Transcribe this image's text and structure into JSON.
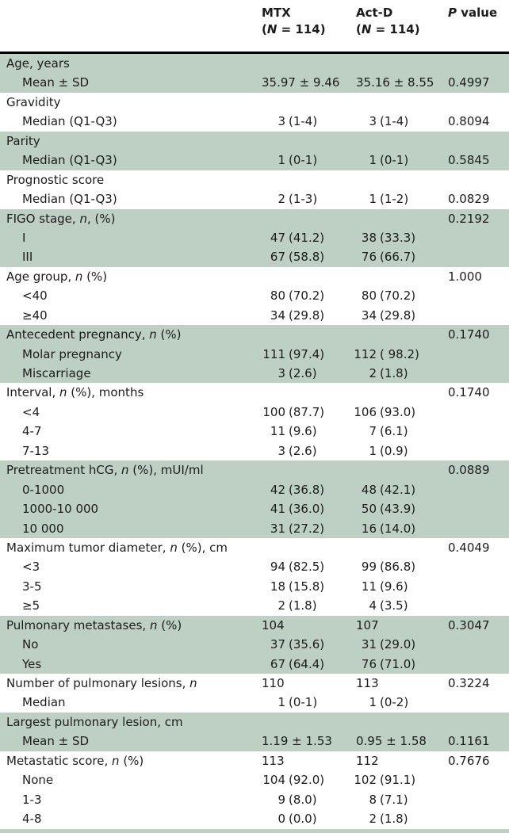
{
  "colors": {
    "band": "#becfc3",
    "rule": "#000000",
    "text": "#1c1c1c",
    "background": "#ffffff"
  },
  "table": {
    "header": {
      "mtx_line1": "MTX",
      "mtx_line2": "(*N* = 114)",
      "actd_line1": "Act-D",
      "actd_line2": "(*N* = 114)",
      "p_label": "*P* value"
    },
    "rows": [
      {
        "label": "Age, years",
        "indent": false,
        "shade": true,
        "mtx": "",
        "actd": "",
        "p": ""
      },
      {
        "label": "Mean ± SD",
        "indent": true,
        "shade": true,
        "mtx": "35.97 ± 9.46",
        "actd": "35.16 ± 8.55",
        "p": "0.4997"
      },
      {
        "label": "Gravidity",
        "indent": false,
        "shade": false,
        "mtx": "",
        "actd": "",
        "p": ""
      },
      {
        "label": "Median (Q1-Q3)",
        "indent": true,
        "shade": false,
        "mtx": "3 (1-4)",
        "actd": "3 (1-4)",
        "p": "0.8094"
      },
      {
        "label": "Parity",
        "indent": false,
        "shade": true,
        "mtx": "",
        "actd": "",
        "p": ""
      },
      {
        "label": "Median (Q1-Q3)",
        "indent": true,
        "shade": true,
        "mtx": "1 (0-1)",
        "actd": "1 (0-1)",
        "p": "0.5845"
      },
      {
        "label": "Prognostic score",
        "indent": false,
        "shade": false,
        "mtx": "",
        "actd": "",
        "p": ""
      },
      {
        "label": "Median (Q1-Q3)",
        "indent": true,
        "shade": false,
        "mtx": "2 (1-3)",
        "actd": "1 (1-2)",
        "p": "0.0829"
      },
      {
        "label": "FIGO stage, *n*, (%)",
        "indent": false,
        "shade": true,
        "mtx": "",
        "actd": "",
        "p": "0.2192"
      },
      {
        "label": "I",
        "indent": true,
        "shade": true,
        "mtx": "47 (41.2)",
        "actd": "38 (33.3)",
        "p": ""
      },
      {
        "label": "III",
        "indent": true,
        "shade": true,
        "mtx": "67 (58.8)",
        "actd": "76 (66.7)",
        "p": ""
      },
      {
        "label": "Age group, *n* (%)",
        "indent": false,
        "shade": false,
        "mtx": "",
        "actd": "",
        "p": "1.000"
      },
      {
        "label": "<40",
        "indent": true,
        "shade": false,
        "mtx": "80 (70.2)",
        "actd": "80 (70.2)",
        "p": ""
      },
      {
        "label": "≥40",
        "indent": true,
        "shade": false,
        "mtx": "34 (29.8)",
        "actd": "34 (29.8)",
        "p": ""
      },
      {
        "label": "Antecedent pregnancy, *n* (%)",
        "indent": false,
        "shade": true,
        "mtx": "",
        "actd": "",
        "p": "0.1740"
      },
      {
        "label": "Molar pregnancy",
        "indent": true,
        "shade": true,
        "mtx": "111 (97.4)",
        "actd": "112 ( 98.2)",
        "p": ""
      },
      {
        "label": "Miscarriage",
        "indent": true,
        "shade": true,
        "mtx": "3 (2.6)",
        "actd": "2 (1.8)",
        "p": ""
      },
      {
        "label": "Interval, *n* (%), months",
        "indent": false,
        "shade": false,
        "mtx": "",
        "actd": "",
        "p": "0.1740"
      },
      {
        "label": "<4",
        "indent": true,
        "shade": false,
        "mtx": "100 (87.7)",
        "actd": "106 (93.0)",
        "p": ""
      },
      {
        "label": "4-7",
        "indent": true,
        "shade": false,
        "mtx": "11 (9.6)",
        "actd": "7 (6.1)",
        "p": ""
      },
      {
        "label": "7-13",
        "indent": true,
        "shade": false,
        "mtx": "3 (2.6)",
        "actd": "1 (0.9)",
        "p": ""
      },
      {
        "label": "Pretreatment hCG, *n* (%), mUI/ml",
        "indent": false,
        "shade": true,
        "mtx": "",
        "actd": "",
        "p": "0.0889"
      },
      {
        "label": "0-1000",
        "indent": true,
        "shade": true,
        "mtx": "42 (36.8)",
        "actd": "48 (42.1)",
        "p": ""
      },
      {
        "label": "1000-10 000",
        "indent": true,
        "shade": true,
        "mtx": "41 (36.0)",
        "actd": "50 (43.9)",
        "p": ""
      },
      {
        "label": "10 000",
        "indent": true,
        "shade": true,
        "mtx": "31 (27.2)",
        "actd": "16 (14.0)",
        "p": ""
      },
      {
        "label": "Maximum tumor diameter, *n* (%), cm",
        "indent": false,
        "shade": false,
        "mtx": "",
        "actd": "",
        "p": "0.4049"
      },
      {
        "label": "<3",
        "indent": true,
        "shade": false,
        "mtx": "94 (82.5)",
        "actd": "99 (86.8)",
        "p": ""
      },
      {
        "label": "3-5",
        "indent": true,
        "shade": false,
        "mtx": "18 (15.8)",
        "actd": "11 (9.6)",
        "p": ""
      },
      {
        "label": "≥5",
        "indent": true,
        "shade": false,
        "mtx": "2 (1.8)",
        "actd": "4 (3.5)",
        "p": ""
      },
      {
        "label": "Pulmonary metastases, *n* (%)",
        "indent": false,
        "shade": true,
        "mtx": "104",
        "actd": "107",
        "p": "0.3047"
      },
      {
        "label": "No",
        "indent": true,
        "shade": true,
        "mtx": "37 (35.6)",
        "actd": "31 (29.0)",
        "p": ""
      },
      {
        "label": "Yes",
        "indent": true,
        "shade": true,
        "mtx": "67 (64.4)",
        "actd": "76 (71.0)",
        "p": ""
      },
      {
        "label": "Number of pulmonary lesions, *n*",
        "indent": false,
        "shade": false,
        "mtx": "110",
        "actd": "113",
        "p": "0.3224"
      },
      {
        "label": "Median",
        "indent": true,
        "shade": false,
        "mtx": "1 (0-1)",
        "actd": "1 (0-2)",
        "p": ""
      },
      {
        "label": "Largest pulmonary lesion, cm",
        "indent": false,
        "shade": true,
        "mtx": "",
        "actd": "",
        "p": ""
      },
      {
        "label": "Mean ± SD",
        "indent": true,
        "shade": true,
        "mtx": "1.19 ± 1.53",
        "actd": "0.95 ± 1.58",
        "p": "0.1161"
      },
      {
        "label": "Metastatic score, *n* (%)",
        "indent": false,
        "shade": false,
        "mtx": "113",
        "actd": "112",
        "p": "0.7676"
      },
      {
        "label": "None",
        "indent": true,
        "shade": false,
        "mtx": "104 (92.0)",
        "actd": "102 (91.1)",
        "p": ""
      },
      {
        "label": "1-3",
        "indent": true,
        "shade": false,
        "mtx": "9 (8.0)",
        "actd": "8 (7.1)",
        "p": ""
      },
      {
        "label": "4-8",
        "indent": true,
        "shade": false,
        "mtx": "0 (0.0)",
        "actd": "2 (1.8)",
        "p": ""
      }
    ]
  }
}
